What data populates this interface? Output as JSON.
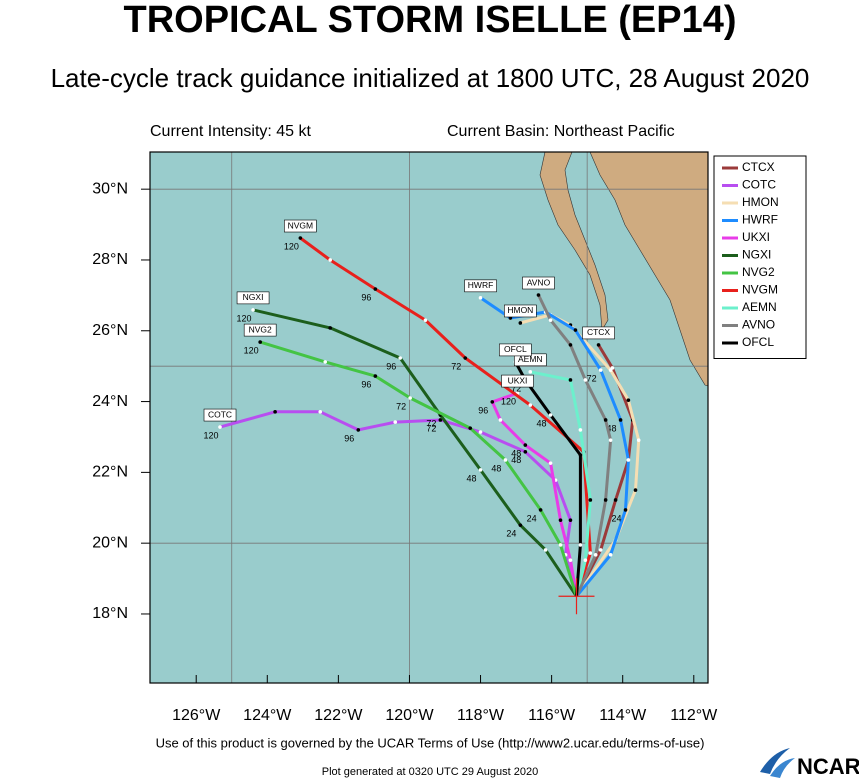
{
  "chart_data": {
    "type": "track",
    "title": "TROPICAL STORM ISELLE (EP14)",
    "subtitle": "Late-cycle track guidance initialized at 1800 UTC, 28 August 2020",
    "intensity_note": "Current Intensity: 45 kt",
    "basin_note": "Current Basin: Northeast Pacific",
    "terms_note": "Use of this product is governed by the UCAR Terms of Use (http://www2.ucar.edu/terms-of-use)",
    "generated_note": "Plot generated at 0320 UTC  29 August 2020",
    "logo_text": "NCAR",
    "xlim": [
      -127.3,
      -111.6
    ],
    "ylim": [
      16.05,
      31.05
    ],
    "xticks": [
      {
        "value": -126,
        "label": "126°W"
      },
      {
        "value": -124,
        "label": "124°W"
      },
      {
        "value": -122,
        "label": "122°W"
      },
      {
        "value": -120,
        "label": "120°W"
      },
      {
        "value": -118,
        "label": "118°W"
      },
      {
        "value": -116,
        "label": "116°W"
      },
      {
        "value": -114,
        "label": "114°W"
      },
      {
        "value": -112,
        "label": "112°W"
      }
    ],
    "yticks": [
      {
        "value": 18,
        "label": "18°N"
      },
      {
        "value": 20,
        "label": "20°N"
      },
      {
        "value": 22,
        "label": "22°N"
      },
      {
        "value": 24,
        "label": "24°N"
      },
      {
        "value": 26,
        "label": "26°N"
      },
      {
        "value": 28,
        "label": "28°N"
      },
      {
        "value": 30,
        "label": "30°N"
      }
    ],
    "grid_x": [
      -125,
      -120,
      -115
    ],
    "grid_y": [
      20,
      25,
      30
    ],
    "series": [
      {
        "name": "CTCX",
        "color": "#9b3a3a",
        "x": [
          -115.3,
          -114.62,
          -114.2,
          -113.84,
          -113.72,
          -114.29,
          -114.68
        ],
        "values": [
          18.5,
          19.81,
          21.22,
          22.35,
          23.48,
          24.95,
          25.6
        ]
      },
      {
        "name": "COTC",
        "color": "#b84ef0",
        "x": [
          -115.3,
          -115.61,
          -115.47,
          -115.89,
          -116.74,
          -118.0,
          -119.13,
          -120.4,
          -121.44,
          -122.51,
          -123.78,
          -125.33
        ],
        "values": [
          18.5,
          19.67,
          20.65,
          21.78,
          22.58,
          23.14,
          23.48,
          23.42,
          23.2,
          23.71,
          23.71,
          23.28
        ],
        "hour_labels": [
          null,
          null,
          null,
          null,
          48,
          null,
          72,
          null,
          96,
          null,
          null,
          120
        ]
      },
      {
        "name": "HMON",
        "color": "#f5deb3",
        "x": [
          -115.3,
          -114.2,
          -113.64,
          -113.55,
          -113.84,
          -114.34,
          -115.47,
          -116.03,
          -116.88
        ],
        "values": [
          18.5,
          20.09,
          21.5,
          22.91,
          24.04,
          24.89,
          26.16,
          26.45,
          26.22
        ]
      },
      {
        "name": "HWRF",
        "color": "#1e8cff",
        "x": [
          -115.3,
          -114.34,
          -113.92,
          -113.84,
          -114.06,
          -114.62,
          -115.33,
          -116.17,
          -117.16,
          -118.0
        ],
        "values": [
          18.5,
          19.67,
          20.94,
          22.35,
          23.48,
          24.89,
          26.02,
          26.53,
          26.36,
          26.93
        ],
        "hour_labels": [
          null,
          null,
          24,
          null,
          48,
          72,
          null,
          null,
          null,
          null
        ]
      },
      {
        "name": "UKXI",
        "color": "#e83ce8",
        "x": [
          -115.3,
          -115.47,
          -115.75,
          -116.03,
          -116.74,
          -117.44,
          -117.67,
          -116.96
        ],
        "values": [
          18.5,
          19.52,
          20.65,
          22.26,
          22.77,
          23.48,
          23.99,
          24.24
        ],
        "hour_labels": [
          null,
          null,
          null,
          null,
          48,
          null,
          96,
          120
        ]
      },
      {
        "name": "NGXI",
        "color": "#1c5e1c",
        "x": [
          -115.3,
          -116.17,
          -116.88,
          -118.0,
          -119.13,
          -120.26,
          -122.23,
          -124.4
        ],
        "values": [
          18.5,
          19.81,
          20.51,
          22.07,
          23.62,
          25.23,
          26.08,
          26.59
        ],
        "hour_labels": [
          null,
          null,
          24,
          48,
          72,
          96,
          null,
          120
        ]
      },
      {
        "name": "NVG2",
        "color": "#44c444",
        "x": [
          -115.3,
          -115.75,
          -116.31,
          -117.3,
          -118.29,
          -119.98,
          -120.96,
          -122.37,
          -124.2
        ],
        "values": [
          18.5,
          19.95,
          20.94,
          22.35,
          23.25,
          24.1,
          24.72,
          25.12,
          25.68
        ],
        "hour_labels": [
          null,
          null,
          24,
          48,
          null,
          72,
          96,
          null,
          120
        ]
      },
      {
        "name": "NVGM",
        "color": "#e8201c",
        "x": [
          -115.3,
          -114.91,
          -115.1,
          -116.6,
          -118.43,
          -119.55,
          -120.96,
          -122.23,
          -123.07
        ],
        "values": [
          18.5,
          19.72,
          22.58,
          23.9,
          25.23,
          26.3,
          27.18,
          28.0,
          28.62
        ],
        "hour_labels": [
          null,
          null,
          null,
          null,
          72,
          null,
          96,
          null,
          120
        ]
      },
      {
        "name": "AEMN",
        "color": "#6cf0cc",
        "x": [
          -115.3,
          -115.05,
          -114.91,
          -115.19,
          -115.47,
          -116.6
        ],
        "values": [
          18.5,
          19.52,
          21.22,
          23.2,
          24.61,
          24.84
        ]
      },
      {
        "name": "AVNO",
        "color": "#808080",
        "x": [
          -115.3,
          -114.76,
          -114.48,
          -114.34,
          -114.48,
          -115.05,
          -115.47,
          -116.03,
          -116.37
        ],
        "values": [
          18.5,
          19.67,
          21.22,
          22.91,
          23.48,
          24.61,
          25.6,
          26.3,
          27.01
        ]
      },
      {
        "name": "OFCL",
        "color": "#000000",
        "x": [
          -115.3,
          -115.19,
          -115.19,
          -116.03,
          -116.74,
          -117.02
        ],
        "values": [
          18.5,
          19.95,
          22.49,
          23.62,
          24.61,
          25.12
        ],
        "hour_labels": [
          null,
          null,
          null,
          48,
          72,
          null
        ]
      }
    ]
  }
}
